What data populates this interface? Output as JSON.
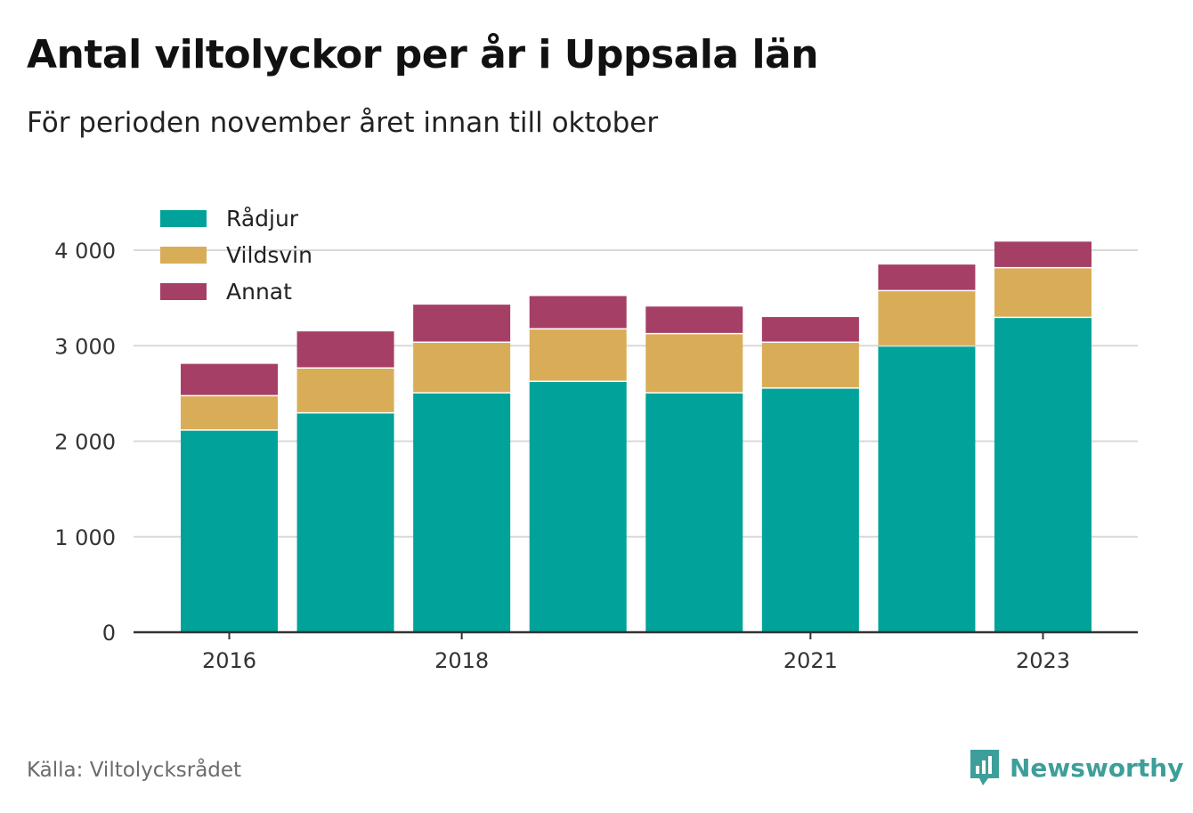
{
  "title": "Antal viltolyckor per år i Uppsala län",
  "subtitle": "För perioden november året innan till oktober",
  "source": "Källa: Viltolycksrådet",
  "brand": {
    "name": "Newsworthy",
    "icon": "newsworthy-logo-icon",
    "color": "#3e9f9a"
  },
  "chart_data": {
    "type": "bar",
    "stacked": true,
    "categories": [
      "2016",
      "2017",
      "2018",
      "2019",
      "2020",
      "2021",
      "2022",
      "2023"
    ],
    "tick_labels": [
      "2016",
      "2018",
      "2021",
      "2023"
    ],
    "series": [
      {
        "name": "Rådjur",
        "color": "#00a29a",
        "values": [
          2110,
          2290,
          2500,
          2620,
          2500,
          2550,
          2990,
          3290
        ]
      },
      {
        "name": "Vildsvin",
        "color": "#d9ad58",
        "values": [
          360,
          470,
          530,
          550,
          620,
          480,
          580,
          520
        ]
      },
      {
        "name": "Annat",
        "color": "#a63f66",
        "values": [
          340,
          390,
          400,
          350,
          290,
          270,
          280,
          280
        ]
      }
    ],
    "ylim": [
      0,
      4000
    ],
    "yticks": [
      0,
      1000,
      2000,
      3000,
      4000
    ],
    "ytick_labels": [
      "0",
      "1 000",
      "2 000",
      "3 000",
      "4 000"
    ],
    "xlabel": "",
    "ylabel": "",
    "grid": true,
    "legend": "top-left"
  }
}
